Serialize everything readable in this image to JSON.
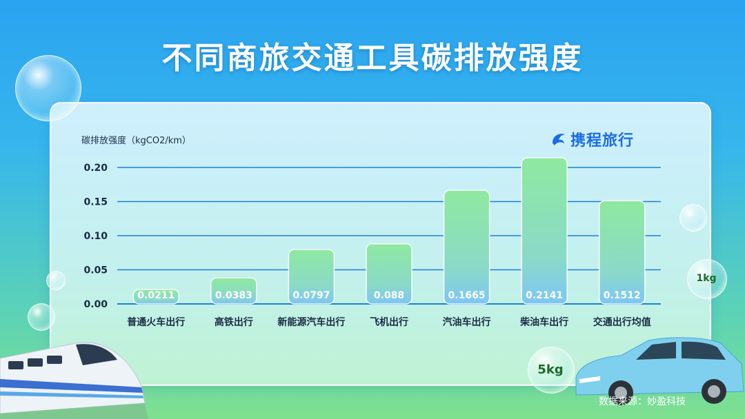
{
  "title": "不同商旅交通工具碳排放强度",
  "source": "数据来源：妙盈科技",
  "brand": {
    "name": "携程旅行",
    "icon": "dolphin-logo-icon"
  },
  "bubbles": {
    "small_label": "1kg",
    "large_label": "5kg"
  },
  "colors": {
    "bar_top": "#8fe9a0",
    "bar_bottom": "#7dc6f5",
    "grid": "#1d7fe0",
    "axis_text": "#1b2b45"
  },
  "chart_data": {
    "type": "bar",
    "title": "不同商旅交通工具碳排放强度",
    "ylabel": "碳排放强度（kgCO2/km）",
    "xlabel": "",
    "categories": [
      "普通火车出行",
      "高铁出行",
      "新能源汽车出行",
      "飞机出行",
      "汽油车出行",
      "柴油车出行",
      "交通出行均值"
    ],
    "values": [
      0.0211,
      0.0383,
      0.0797,
      0.088,
      0.1665,
      0.2141,
      0.1512
    ],
    "value_labels": [
      "0.0211",
      "0.0383",
      "0.0797",
      "0.088",
      "0.1665",
      "0.2141",
      "0.1512"
    ],
    "yticks": [
      "0.00",
      "0.05",
      "0.10",
      "0.15",
      "0.20"
    ],
    "ylim": [
      0,
      0.2
    ],
    "grid": true,
    "legend": "none"
  }
}
